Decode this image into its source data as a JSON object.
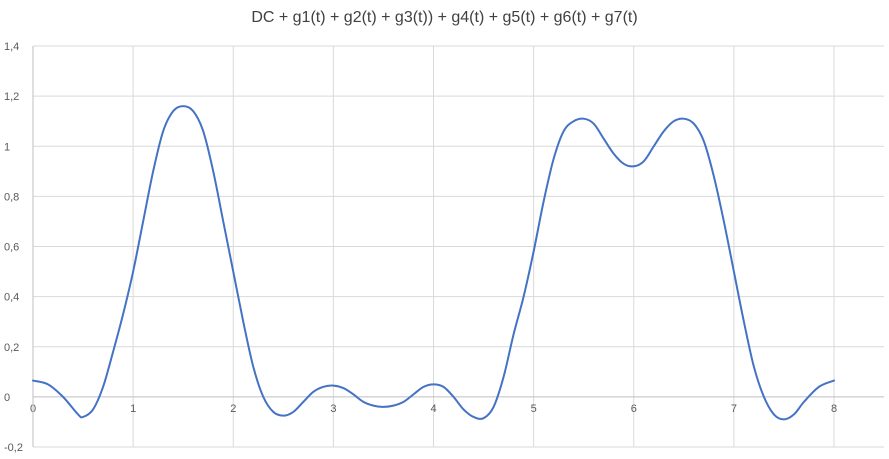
{
  "chart_data": {
    "type": "line",
    "title": "DC + g1(t) + g2(t) + g3(t)) + g4(t) + g5(t) + g6(t) + g7(t)",
    "xlabel": "",
    "ylabel": "",
    "xlim": [
      0,
      8
    ],
    "ylim": [
      -0.2,
      1.4
    ],
    "x_ticks": [
      "0",
      "1",
      "2",
      "3",
      "4",
      "5",
      "6",
      "7",
      "8"
    ],
    "y_ticks": [
      "-0,2",
      "0",
      "0,2",
      "0,4",
      "0,6",
      "0,8",
      "1",
      "1,2",
      "1,4"
    ],
    "grid": true,
    "series_color": "#4472c4",
    "series": [
      {
        "x": [
          0,
          0.15,
          0.3,
          0.45,
          0.5,
          0.6,
          0.7,
          0.8,
          0.9,
          1.0,
          1.1,
          1.2,
          1.3,
          1.4,
          1.5,
          1.6,
          1.7,
          1.8,
          1.9,
          2.0,
          2.1,
          2.2,
          2.3,
          2.4,
          2.5,
          2.6,
          2.7,
          2.8,
          2.9,
          3.0,
          3.1,
          3.2,
          3.3,
          3.4,
          3.5,
          3.6,
          3.7,
          3.8,
          3.9,
          4.0,
          4.1,
          4.2,
          4.3,
          4.4,
          4.5,
          4.6,
          4.7,
          4.8,
          4.9,
          5.0,
          5.1,
          5.2,
          5.3,
          5.4,
          5.5,
          5.6,
          5.7,
          5.8,
          5.9,
          6.0,
          6.1,
          6.2,
          6.3,
          6.4,
          6.5,
          6.6,
          6.7,
          6.8,
          6.9,
          7.0,
          7.1,
          7.2,
          7.3,
          7.4,
          7.5,
          7.6,
          7.7,
          7.85,
          8.0
        ],
        "values": [
          0.065,
          0.05,
          0.0,
          -0.07,
          -0.08,
          -0.05,
          0.04,
          0.18,
          0.33,
          0.5,
          0.7,
          0.9,
          1.06,
          1.14,
          1.16,
          1.14,
          1.06,
          0.9,
          0.7,
          0.5,
          0.3,
          0.12,
          0.0,
          -0.06,
          -0.075,
          -0.06,
          -0.02,
          0.02,
          0.04,
          0.045,
          0.035,
          0.01,
          -0.02,
          -0.035,
          -0.04,
          -0.035,
          -0.02,
          0.01,
          0.04,
          0.05,
          0.04,
          0.0,
          -0.05,
          -0.08,
          -0.085,
          -0.04,
          0.08,
          0.25,
          0.4,
          0.58,
          0.78,
          0.95,
          1.06,
          1.1,
          1.11,
          1.09,
          1.03,
          0.97,
          0.93,
          0.92,
          0.94,
          1.0,
          1.06,
          1.1,
          1.11,
          1.09,
          1.02,
          0.88,
          0.7,
          0.5,
          0.3,
          0.12,
          0.0,
          -0.07,
          -0.09,
          -0.07,
          -0.02,
          0.04,
          0.065
        ]
      }
    ]
  }
}
